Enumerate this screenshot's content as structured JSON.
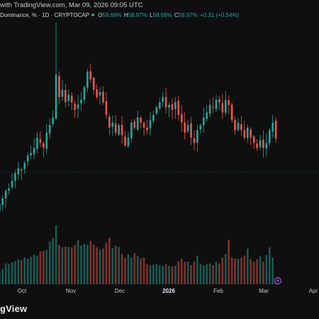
{
  "header": {
    "publish_line": "with TradingView.com, Mar 09, 2026 09:05 UTC",
    "symbol": "Dominance, % · 1D · CRYPTOCAP",
    "o_label": "O",
    "o_value": "58.66%",
    "h_label": "H",
    "h_value": "58.97%",
    "l_label": "L",
    "l_value": "58.66%",
    "c_label": "C",
    "c_value": "58.97%",
    "change": "+0.31 (+0.54%)"
  },
  "colors": {
    "up": "#26a69a",
    "down": "#ef5350",
    "background": "#0f0f0f",
    "accent": "#b266ff"
  },
  "icons": [
    "lightning-icon"
  ],
  "brand": "gView",
  "chart_data": {
    "type": "candlestick",
    "title": "",
    "xlabel": "",
    "ylabel": "",
    "x_tick_labels": [
      "Oct",
      "Nov",
      "Dec",
      "2026",
      "Feb",
      "Mar",
      "Apr"
    ],
    "grid": false,
    "price_scale": "hidden",
    "volume_scale": "relative",
    "series": [
      {
        "name": "",
        "close_path": [
          56.4,
          56.6,
          56.9,
          57.0,
          57.3,
          57.6,
          57.8,
          57.7,
          58.0,
          58.3,
          58.4,
          58.6,
          59.0,
          58.8,
          58.6,
          59.2,
          59.5,
          59.8,
          61.5,
          60.6,
          60.9,
          60.4,
          60.7,
          60.4,
          60.1,
          60.3,
          60.5,
          61.0,
          61.6,
          61.3,
          60.9,
          60.6,
          60.8,
          60.4,
          59.9,
          59.4,
          59.6,
          59.2,
          59.5,
          59.1,
          58.7,
          59.0,
          59.6,
          59.4,
          59.8,
          59.6,
          59.4,
          59.3,
          59.7,
          59.9,
          60.2,
          60.4,
          60.6,
          60.2,
          60.3,
          60.1,
          60.4,
          59.9,
          59.6,
          59.2,
          59.5,
          59.0,
          58.8,
          59.3,
          59.5,
          59.8,
          60.0,
          60.3,
          60.2,
          60.5,
          60.4,
          60.0,
          60.5,
          60.3,
          59.7,
          59.3,
          59.6,
          59.3,
          59.0,
          59.4,
          59.0,
          58.8,
          58.6,
          58.9,
          58.6,
          58.8,
          59.3,
          59.6,
          58.97
        ]
      }
    ],
    "volume_series": {
      "name": "",
      "relative_values": [
        0.2,
        0.26,
        0.35,
        0.34,
        0.37,
        0.39,
        0.42,
        0.41,
        0.45,
        0.43,
        0.46,
        0.5,
        0.48,
        0.55,
        0.56,
        0.58,
        0.72,
        0.78,
        0.99,
        0.66,
        0.62,
        0.63,
        0.63,
        0.62,
        0.66,
        0.74,
        0.65,
        0.68,
        0.66,
        0.73,
        0.67,
        0.62,
        0.58,
        0.6,
        0.7,
        0.78,
        0.61,
        0.65,
        0.63,
        0.51,
        0.44,
        0.5,
        0.45,
        0.52,
        0.48,
        0.43,
        0.45,
        0.34,
        0.32,
        0.33,
        0.34,
        0.32,
        0.31,
        0.34,
        0.31,
        0.3,
        0.31,
        0.39,
        0.43,
        0.38,
        0.38,
        0.32,
        0.38,
        0.48,
        0.34,
        0.32,
        0.34,
        0.35,
        0.32,
        0.38,
        0.35,
        0.45,
        0.51,
        0.75,
        0.45,
        0.43,
        0.43,
        0.45,
        0.48,
        0.6,
        0.42,
        0.38,
        0.42,
        0.47,
        0.38,
        0.49,
        0.62,
        0.45,
        0.1
      ]
    }
  }
}
